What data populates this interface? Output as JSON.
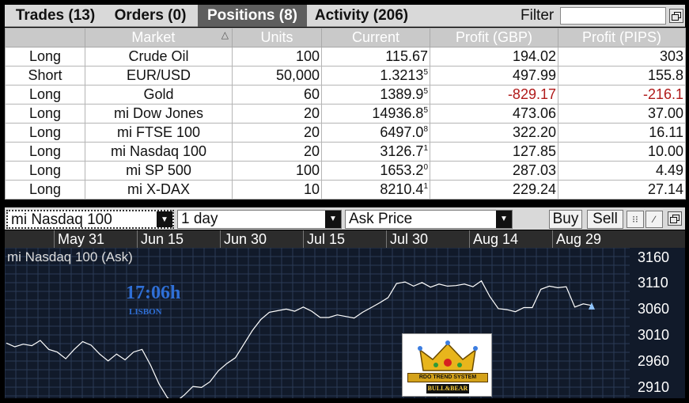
{
  "tabs": [
    {
      "label": "Trades (13)",
      "active": false
    },
    {
      "label": "Orders (0)",
      "active": false
    },
    {
      "label": "Positions (8)",
      "active": true
    },
    {
      "label": "Activity (206)",
      "active": false
    }
  ],
  "filter": {
    "label": "Filter",
    "value": ""
  },
  "table": {
    "columns": [
      "",
      "Market",
      "Units",
      "Current",
      "Profit (GBP)",
      "Profit (PIPS)"
    ],
    "rows": [
      {
        "side": "Long",
        "market": "Crude Oil",
        "units": "100",
        "current": "115.67",
        "current_sup": "",
        "profit_gbp": "194.02",
        "profit_pips": "303",
        "negative": false
      },
      {
        "side": "Short",
        "market": "EUR/USD",
        "units": "50,000",
        "current": "1.3213",
        "current_sup": "5",
        "profit_gbp": "497.99",
        "profit_pips": "155.8",
        "negative": false
      },
      {
        "side": "Long",
        "market": "Gold",
        "units": "60",
        "current": "1389.9",
        "current_sup": "5",
        "profit_gbp": "-829.17",
        "profit_pips": "-216.1",
        "negative": true
      },
      {
        "side": "Long",
        "market": "mi Dow Jones",
        "units": "20",
        "current": "14936.8",
        "current_sup": "5",
        "profit_gbp": "473.06",
        "profit_pips": "37.00",
        "negative": false
      },
      {
        "side": "Long",
        "market": "mi FTSE 100",
        "units": "20",
        "current": "6497.0",
        "current_sup": "8",
        "profit_gbp": "322.20",
        "profit_pips": "16.11",
        "negative": false
      },
      {
        "side": "Long",
        "market": "mi Nasdaq 100",
        "units": "20",
        "current": "3126.7",
        "current_sup": "1",
        "profit_gbp": "127.85",
        "profit_pips": "10.00",
        "negative": false
      },
      {
        "side": "Long",
        "market": "mi SP 500",
        "units": "100",
        "current": "1653.2",
        "current_sup": "0",
        "profit_gbp": "287.03",
        "profit_pips": "4.49",
        "negative": false
      },
      {
        "side": "Long",
        "market": "mi X-DAX",
        "units": "10",
        "current": "8210.4",
        "current_sup": "1",
        "profit_gbp": "229.24",
        "profit_pips": "27.14",
        "negative": false
      }
    ]
  },
  "toolbar": {
    "instrument": "mi Nasdaq 100",
    "interval": "1 day",
    "price_type": "Ask Price",
    "buy_label": "Buy",
    "sell_label": "Sell"
  },
  "chart": {
    "label": "mi Nasdaq 100 (Ask)",
    "x_ticks": [
      "May 31",
      "Jun 15",
      "Jun 30",
      "Jul 15",
      "Jul 30",
      "Aug 14",
      "Aug 29"
    ],
    "y_ticks": [
      "3160",
      "3110",
      "3060",
      "3010",
      "2960",
      "2910"
    ],
    "line_color": "#ffffff",
    "grid_color": "#2a3b55"
  },
  "chart_data": {
    "type": "line",
    "title": "mi Nasdaq 100 (Ask)",
    "xlabel": "",
    "ylabel": "",
    "ylim": [
      2905,
      3175
    ],
    "x": [
      "May 27",
      "May 28",
      "May 29",
      "May 30",
      "May 31",
      "Jun 3",
      "Jun 4",
      "Jun 5",
      "Jun 6",
      "Jun 7",
      "Jun 10",
      "Jun 11",
      "Jun 12",
      "Jun 13",
      "Jun 14",
      "Jun 17",
      "Jun 18",
      "Jun 19",
      "Jun 20",
      "Jun 21",
      "Jun 24",
      "Jun 25",
      "Jun 26",
      "Jun 27",
      "Jun 28",
      "Jul 1",
      "Jul 2",
      "Jul 3",
      "Jul 5",
      "Jul 8",
      "Jul 9",
      "Jul 10",
      "Jul 11",
      "Jul 12",
      "Jul 15",
      "Jul 16",
      "Jul 17",
      "Jul 18",
      "Jul 19",
      "Jul 22",
      "Jul 23",
      "Jul 24",
      "Jul 25",
      "Jul 26",
      "Jul 29",
      "Jul 30",
      "Jul 31",
      "Aug 1",
      "Aug 2",
      "Aug 5",
      "Aug 6",
      "Aug 7",
      "Aug 8",
      "Aug 9",
      "Aug 12",
      "Aug 13",
      "Aug 14",
      "Aug 15",
      "Aug 16",
      "Aug 19",
      "Aug 20",
      "Aug 21",
      "Aug 22",
      "Aug 23",
      "Aug 26",
      "Aug 27",
      "Aug 28",
      "Aug 29",
      "Aug 30",
      "Sep 3"
    ],
    "series": [
      {
        "values": [
          3011,
          3004,
          3009,
          3006,
          3016,
          2999,
          2994,
          2981,
          2999,
          3014,
          3007,
          2990,
          2977,
          2990,
          2979,
          2994,
          2999,
          2969,
          2933,
          2906,
          2899,
          2912,
          2928,
          2926,
          2937,
          2958,
          2972,
          2983,
          3009,
          3035,
          3056,
          3070,
          3073,
          3076,
          3072,
          3080,
          3072,
          3060,
          3060,
          3065,
          3062,
          3059,
          3070,
          3079,
          3088,
          3098,
          3125,
          3128,
          3120,
          3127,
          3118,
          3124,
          3120,
          3121,
          3124,
          3119,
          3130,
          3100,
          3077,
          3075,
          3071,
          3079,
          3079,
          3114,
          3120,
          3117,
          3119,
          3080,
          3086,
          3083
        ]
      }
    ]
  },
  "clock": {
    "time": "17:06h",
    "city": "LISBON"
  },
  "logo": {
    "top_text": "RDO  TREND SYSTEM",
    "bottom_text": "BULL&BEAR"
  }
}
